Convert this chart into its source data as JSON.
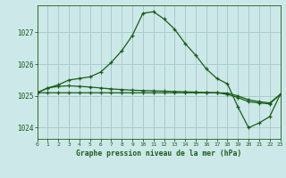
{
  "title": "Graphe pression niveau de la mer (hPa)",
  "bg": "#cce8e8",
  "grid_color": "#aacccc",
  "lc": "#1a5c1a",
  "xlim": [
    0,
    23
  ],
  "ylim": [
    1023.65,
    1027.85
  ],
  "yticks": [
    1024,
    1025,
    1026,
    1027
  ],
  "xticks": [
    0,
    1,
    2,
    3,
    4,
    5,
    6,
    7,
    8,
    9,
    10,
    11,
    12,
    13,
    14,
    15,
    16,
    17,
    18,
    19,
    20,
    21,
    22,
    23
  ],
  "s1y": [
    1025.1,
    1025.25,
    1025.35,
    1025.5,
    1025.55,
    1025.6,
    1025.75,
    1026.05,
    1026.42,
    1026.9,
    1027.6,
    1027.65,
    1027.42,
    1027.1,
    1026.65,
    1026.28,
    1025.85,
    1025.55,
    1025.38,
    1024.65,
    1024.0,
    1024.15,
    1024.35,
    1025.05
  ],
  "s2y": [
    1025.1,
    1025.25,
    1025.3,
    1025.32,
    1025.3,
    1025.28,
    1025.25,
    1025.22,
    1025.2,
    1025.18,
    1025.17,
    1025.16,
    1025.15,
    1025.14,
    1025.13,
    1025.12,
    1025.11,
    1025.1,
    1025.09,
    1025.0,
    1024.88,
    1024.82,
    1024.78,
    1025.05
  ],
  "s3y": [
    1025.1,
    1025.1,
    1025.1,
    1025.1,
    1025.1,
    1025.1,
    1025.1,
    1025.1,
    1025.1,
    1025.1,
    1025.1,
    1025.1,
    1025.1,
    1025.1,
    1025.1,
    1025.1,
    1025.1,
    1025.1,
    1025.05,
    1024.95,
    1024.82,
    1024.78,
    1024.75,
    1025.05
  ]
}
